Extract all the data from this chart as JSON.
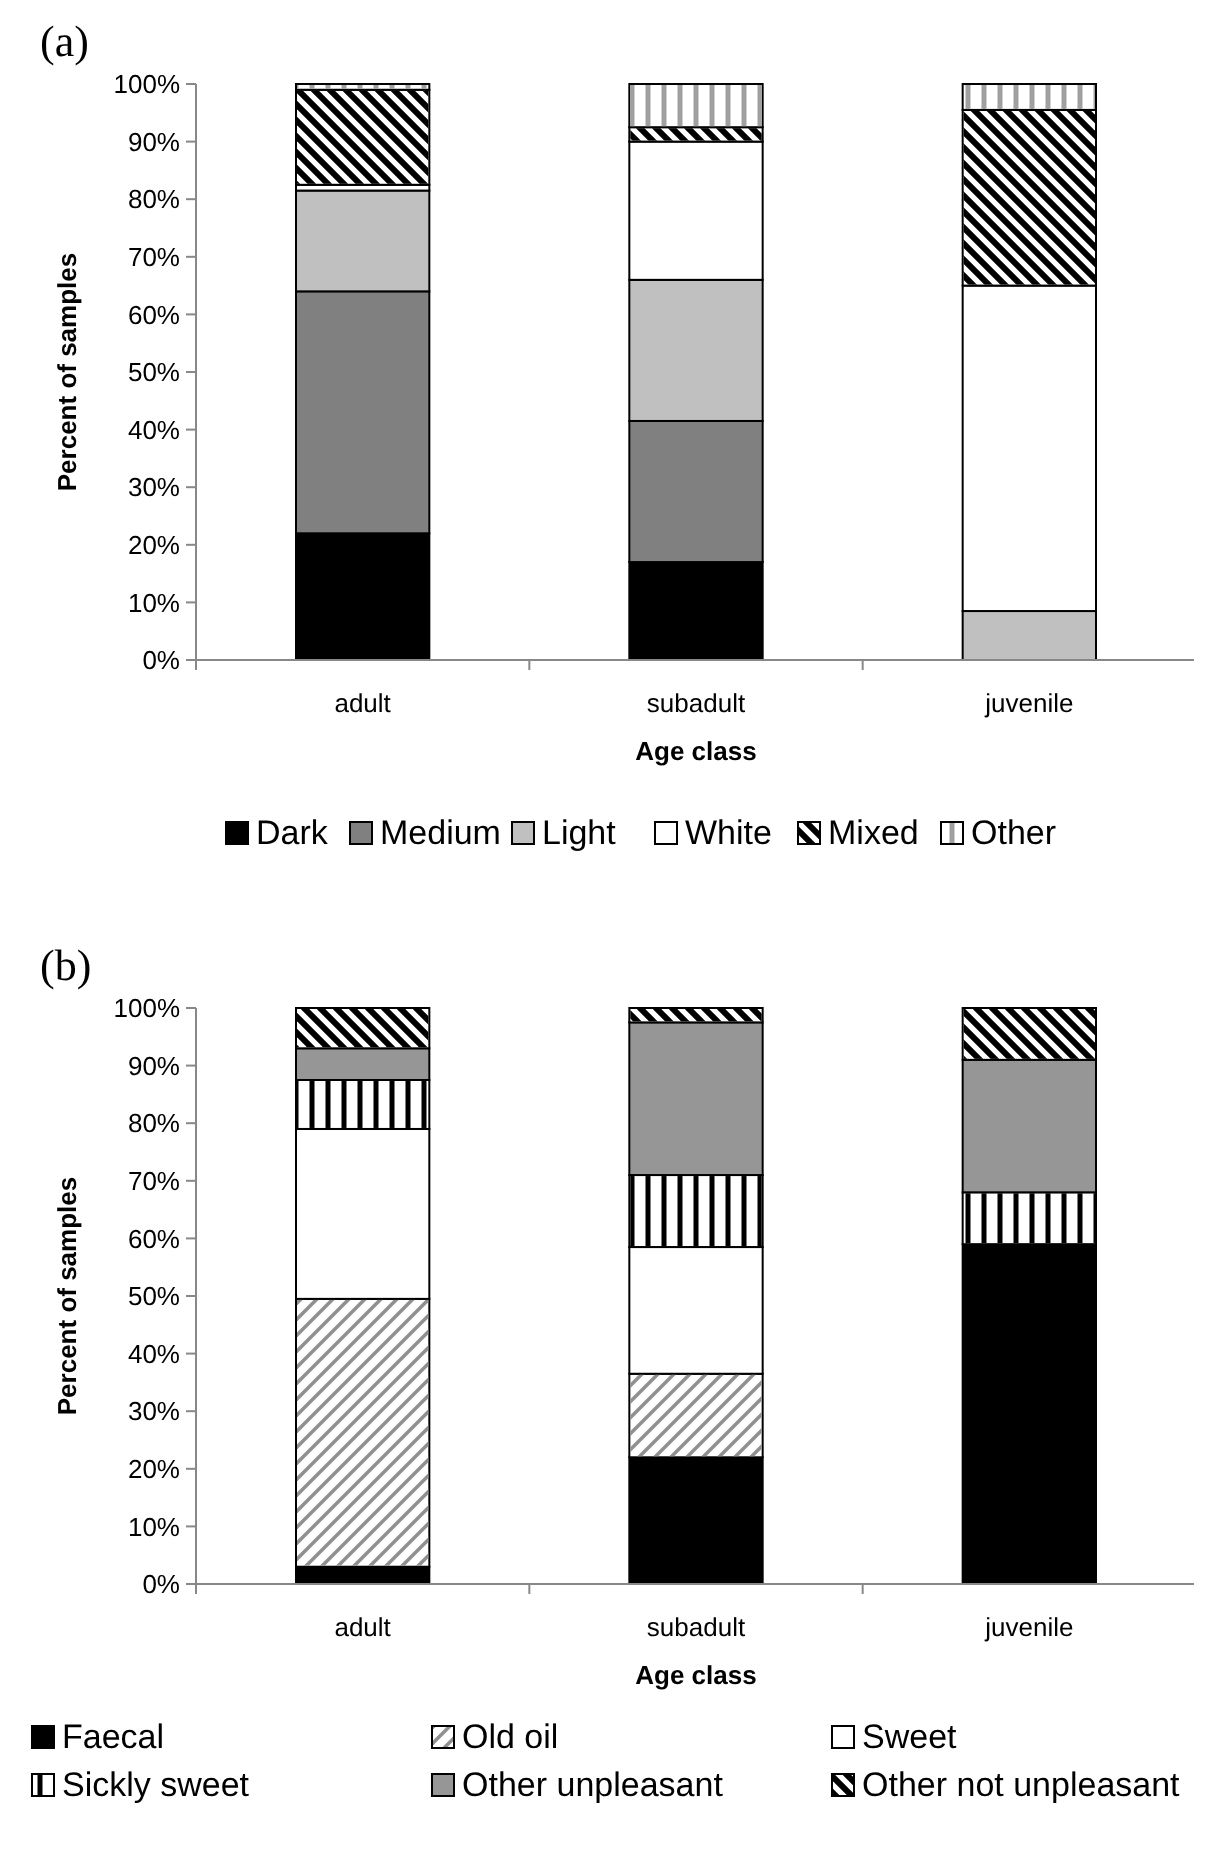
{
  "chart_data": [
    {
      "type": "bar",
      "title": "(a)",
      "xlabel": "Age class",
      "ylabel": "Percent of samples",
      "categories": [
        "adult",
        "subadult",
        "juvenile"
      ],
      "stacked": true,
      "legend": "bottom",
      "grid": false,
      "ylim": [
        0,
        100
      ],
      "yticks": [
        {
          "value": 0,
          "label": "0%"
        },
        {
          "value": 10,
          "label": "10%"
        },
        {
          "value": 20,
          "label": "20%"
        },
        {
          "value": 30,
          "label": "30%"
        },
        {
          "value": 40,
          "label": "40%"
        },
        {
          "value": 50,
          "label": "50%"
        },
        {
          "value": 60,
          "label": "60%"
        },
        {
          "value": 70,
          "label": "70%"
        },
        {
          "value": 80,
          "label": "80%"
        },
        {
          "value": 90,
          "label": "90%"
        },
        {
          "value": 100,
          "label": "100%"
        }
      ],
      "series": [
        {
          "name": "Dark",
          "color": "#000000",
          "values": [
            22,
            17,
            0
          ]
        },
        {
          "name": "Medium",
          "color": "#808080",
          "values": [
            42,
            24.5,
            0
          ]
        },
        {
          "name": "Light",
          "color": "#c0c0c0",
          "values": [
            17.5,
            24.5,
            8.5
          ]
        },
        {
          "name": "White",
          "color": "#ffffff",
          "values": [
            1,
            24,
            56.5
          ]
        },
        {
          "name": "Mixed",
          "color": "#ffffff",
          "values": [
            16.5,
            2.5,
            30.5
          ]
        },
        {
          "name": "Other",
          "color": "#ffffff",
          "values": [
            1,
            7.5,
            4.5
          ]
        }
      ]
    },
    {
      "type": "bar",
      "title": "(b)",
      "xlabel": "Age class",
      "ylabel": "Percent of samples",
      "categories": [
        "adult",
        "subadult",
        "juvenile"
      ],
      "stacked": true,
      "legend": "bottom",
      "grid": false,
      "ylim": [
        0,
        100
      ],
      "yticks": [
        {
          "value": 0,
          "label": "0%"
        },
        {
          "value": 10,
          "label": "10%"
        },
        {
          "value": 20,
          "label": "20%"
        },
        {
          "value": 30,
          "label": "30%"
        },
        {
          "value": 40,
          "label": "40%"
        },
        {
          "value": 50,
          "label": "50%"
        },
        {
          "value": 60,
          "label": "60%"
        },
        {
          "value": 70,
          "label": "70%"
        },
        {
          "value": 80,
          "label": "80%"
        },
        {
          "value": 90,
          "label": "90%"
        },
        {
          "value": 100,
          "label": "100%"
        }
      ],
      "series": [
        {
          "name": "Faecal",
          "color": "#000000",
          "values": [
            3,
            22,
            59
          ]
        },
        {
          "name": "Old oil",
          "color": "#ffffff",
          "values": [
            46.5,
            14.5,
            0
          ]
        },
        {
          "name": "Sweet",
          "color": "#ffffff",
          "values": [
            29.5,
            22,
            0
          ]
        },
        {
          "name": "Sickly sweet",
          "color": "#ffffff",
          "values": [
            8.5,
            12.5,
            9
          ]
        },
        {
          "name": "Other unpleasant",
          "color": "#969696",
          "values": [
            5.5,
            26.5,
            23
          ]
        },
        {
          "name": "Other not unpleasant",
          "color": "#ffffff",
          "values": [
            7,
            2.5,
            9
          ]
        }
      ]
    }
  ]
}
